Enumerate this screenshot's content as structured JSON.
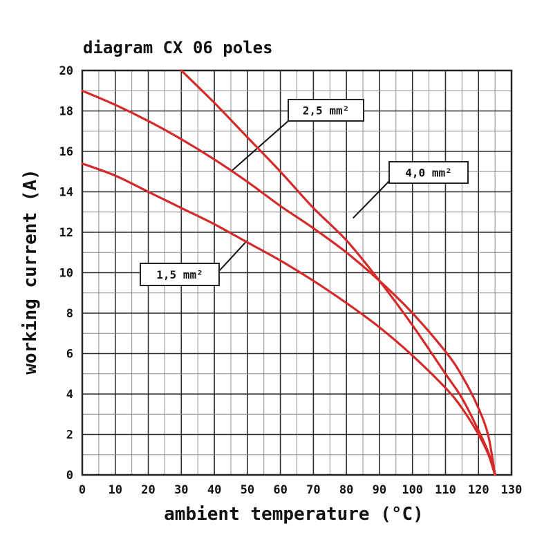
{
  "chart_data": {
    "type": "line",
    "title": "diagram CX 06 poles",
    "xlabel": "ambient temperature (°C)",
    "ylabel": "working current (A)",
    "xlim": [
      0,
      130
    ],
    "ylim": [
      0,
      20
    ],
    "x_ticks": [
      "0",
      "10",
      "20",
      "30",
      "40",
      "50",
      "60",
      "70",
      "80",
      "90",
      "100",
      "110",
      "120",
      "130"
    ],
    "y_ticks": [
      "0",
      "2",
      "4",
      "6",
      "8",
      "10",
      "12",
      "14",
      "16",
      "18",
      "20"
    ],
    "grid": true,
    "line_color": "#d42a2a",
    "series": [
      {
        "name": "1,5 mm²",
        "x": [
          0,
          10,
          20,
          30,
          40,
          50,
          60,
          70,
          80,
          90,
          100,
          110,
          115,
          120,
          123,
          125
        ],
        "y": [
          15.4,
          14.8,
          14.0,
          13.2,
          12.4,
          11.5,
          10.6,
          9.6,
          8.5,
          7.3,
          5.9,
          4.3,
          3.3,
          2.0,
          1.0,
          0
        ]
      },
      {
        "name": "2,5 mm²",
        "x": [
          0,
          10,
          20,
          30,
          40,
          50,
          60,
          70,
          80,
          90,
          100,
          110,
          115,
          120,
          123,
          125
        ],
        "y": [
          19.0,
          18.3,
          17.5,
          16.6,
          15.6,
          14.5,
          13.3,
          12.2,
          11.0,
          9.6,
          8.0,
          6.1,
          4.9,
          3.3,
          1.9,
          0
        ]
      },
      {
        "name": "4,0 mm²",
        "x": [
          30,
          40,
          50,
          60,
          70,
          80,
          90,
          100,
          110,
          115,
          120,
          123,
          125
        ],
        "y": [
          20.0,
          18.4,
          16.7,
          15.0,
          13.2,
          11.6,
          9.6,
          7.4,
          5.0,
          3.8,
          2.2,
          1.1,
          0
        ]
      }
    ],
    "annotations": [
      {
        "text": "2,5 mm²",
        "series": "2,5 mm²",
        "x": 45,
        "y": 15.0
      },
      {
        "text": "4,0 mm²",
        "series": "4,0 mm²",
        "x": 82,
        "y": 12.7
      },
      {
        "text": "1,5 mm²",
        "series": "1,5 mm²",
        "x": 50,
        "y": 11.6
      }
    ]
  }
}
